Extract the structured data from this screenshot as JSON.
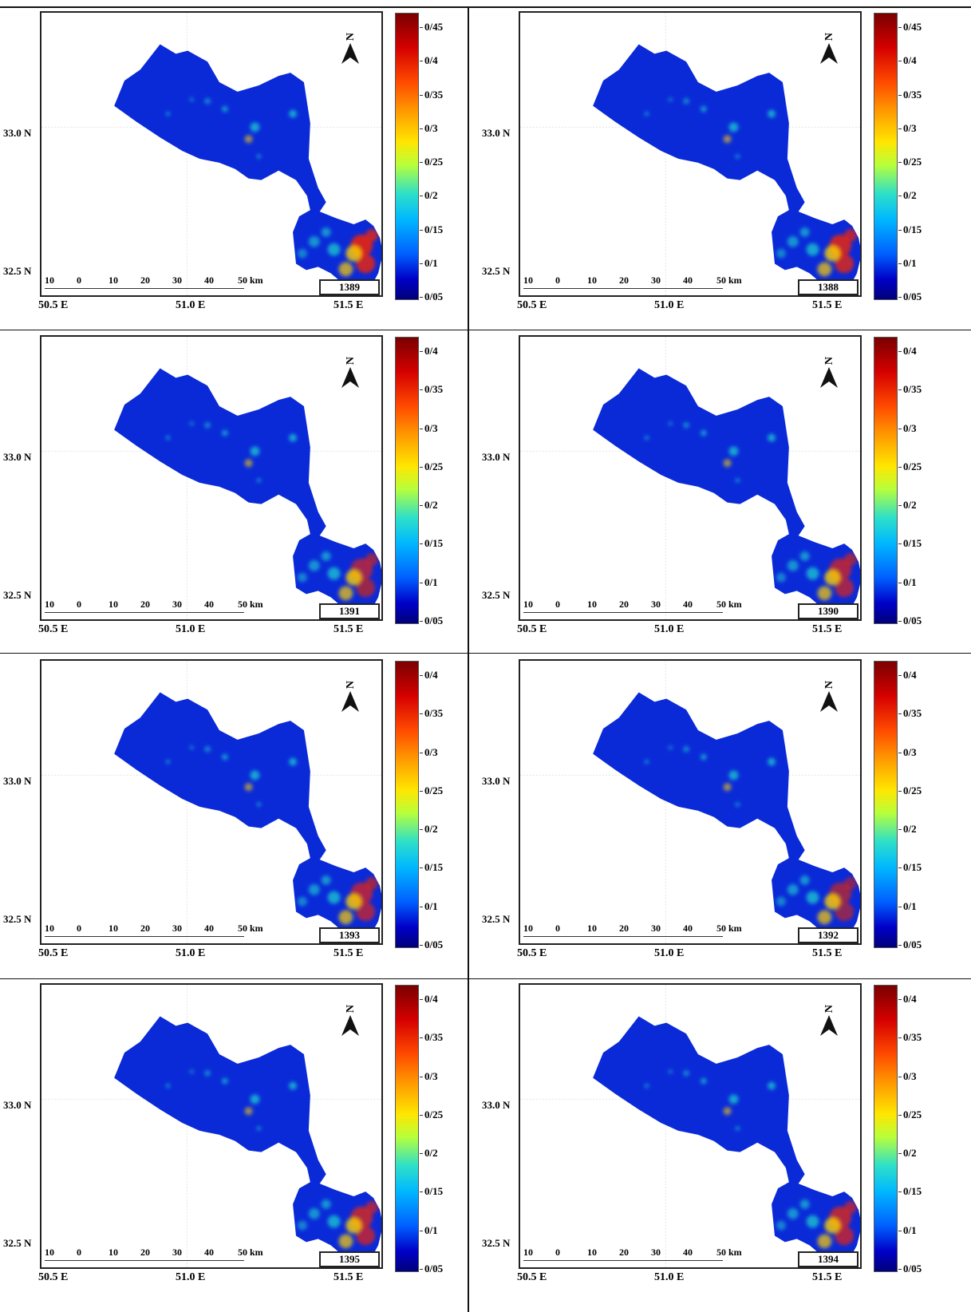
{
  "colors": {
    "region_fill": "#0a2ad8",
    "hot": "#e8240a",
    "warm": "#ffd200",
    "mid": "#20d8d0",
    "frame": "#222222"
  },
  "common": {
    "lat_labels": [
      "33.0 N",
      "32.5 N"
    ],
    "lon_labels": [
      "50.5 E",
      "51.0 E",
      "51.5 E"
    ],
    "scale_labels": [
      "10",
      "0",
      "10",
      "20",
      "30",
      "40",
      "50 km"
    ],
    "north_label": "N",
    "north_icon": "north-arrow-icon"
  },
  "panels": [
    {
      "year": "1389",
      "legend": [
        "0/45",
        "0/4",
        "0/35",
        "0/3",
        "0/25",
        "0/2",
        "0/15",
        "0/1",
        "0/05"
      ],
      "hot_intensity": 1.0
    },
    {
      "year": "1388",
      "legend": [
        "0/45",
        "0/4",
        "0/35",
        "0/3",
        "0/25",
        "0/2",
        "0/15",
        "0/1",
        "0/05"
      ],
      "hot_intensity": 0.95
    },
    {
      "year": "1391",
      "legend": [
        "0/4",
        "0/35",
        "0/3",
        "0/25",
        "0/2",
        "0/15",
        "0/1",
        "0/05"
      ],
      "hot_intensity": 0.75
    },
    {
      "year": "1390",
      "legend": [
        "0/4",
        "0/35",
        "0/3",
        "0/25",
        "0/2",
        "0/15",
        "0/1",
        "0/05"
      ],
      "hot_intensity": 0.8
    },
    {
      "year": "1393",
      "legend": [
        "0/4",
        "0/35",
        "0/3",
        "0/25",
        "0/2",
        "0/15",
        "0/1",
        "0/05"
      ],
      "hot_intensity": 0.8
    },
    {
      "year": "1392",
      "legend": [
        "0/4",
        "0/35",
        "0/3",
        "0/25",
        "0/2",
        "0/15",
        "0/1",
        "0/05"
      ],
      "hot_intensity": 0.7
    },
    {
      "year": "1395",
      "legend": [
        "0/4",
        "0/35",
        "0/3",
        "0/25",
        "0/2",
        "0/15",
        "0/1",
        "0/05"
      ],
      "hot_intensity": 0.85
    },
    {
      "year": "1394",
      "legend": [
        "0/4",
        "0/35",
        "0/3",
        "0/25",
        "0/2",
        "0/15",
        "0/1",
        "0/05"
      ],
      "hot_intensity": 0.85
    }
  ]
}
